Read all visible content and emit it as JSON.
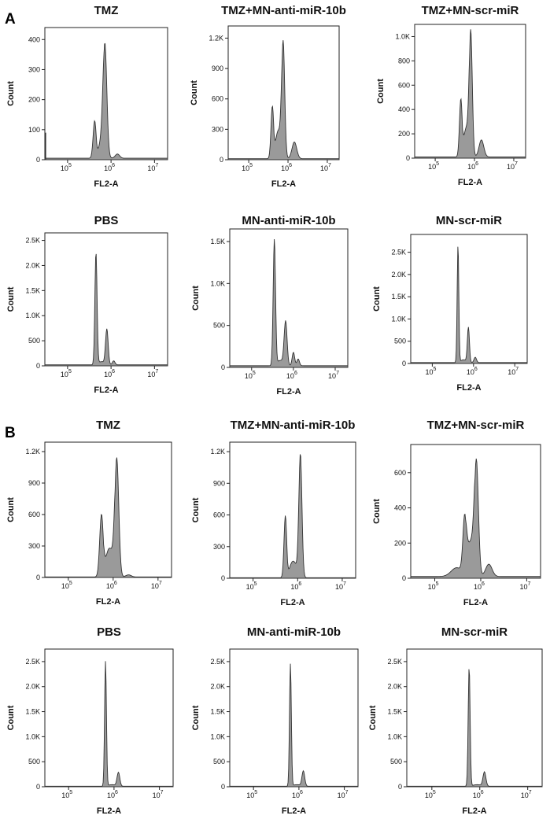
{
  "figure": {
    "panel_labels": [
      "A",
      "B"
    ]
  },
  "chart_data": [
    {
      "type": "histogram",
      "panel": "A",
      "title": "TMZ",
      "xlabel": "FL2-A",
      "ylabel": "Count",
      "xscale": "log",
      "xlim": [
        30000,
        20000000
      ],
      "xticks": [
        {
          "value": 100000,
          "base": "10",
          "exp": "5"
        },
        {
          "value": 1000000,
          "base": "10",
          "exp": "6"
        },
        {
          "value": 10000000,
          "base": "10",
          "exp": "7"
        }
      ],
      "ylim": [
        0,
        440
      ],
      "yticks": [
        {
          "value": 0,
          "label": "0"
        },
        {
          "value": 100,
          "label": "100"
        },
        {
          "value": 200,
          "label": "200"
        },
        {
          "value": 300,
          "label": "300"
        },
        {
          "value": 400,
          "label": "400"
        }
      ],
      "baseline": 5,
      "peaks": [
        {
          "center": 420000,
          "height": 125,
          "width": 0.035
        },
        {
          "center": 720000,
          "height": 385,
          "width": 0.045
        },
        {
          "center": 1400000,
          "height": 14,
          "width": 0.05
        }
      ],
      "s_phase": {
        "from": 480000,
        "to": 680000,
        "level": 42
      },
      "edge_spike": {
        "height": 90
      }
    },
    {
      "type": "histogram",
      "panel": "A",
      "title": "TMZ+MN-anti-miR-10b",
      "xlabel": "FL2-A",
      "ylabel": "Count",
      "xscale": "log",
      "xlim": [
        30000,
        20000000
      ],
      "xticks": [
        {
          "value": 100000,
          "base": "10",
          "exp": "5"
        },
        {
          "value": 1000000,
          "base": "10",
          "exp": "6"
        },
        {
          "value": 10000000,
          "base": "10",
          "exp": "7"
        }
      ],
      "ylim": [
        0,
        1320
      ],
      "yticks": [
        {
          "value": 0,
          "label": "0"
        },
        {
          "value": 300,
          "label": "300"
        },
        {
          "value": 600,
          "label": "600"
        },
        {
          "value": 900,
          "label": "900"
        },
        {
          "value": 1200,
          "label": "1.2K"
        }
      ],
      "baseline": 10,
      "peaks": [
        {
          "center": 400000,
          "height": 520,
          "width": 0.035
        },
        {
          "center": 750000,
          "height": 1170,
          "width": 0.04
        },
        {
          "center": 1450000,
          "height": 165,
          "width": 0.06
        }
      ],
      "s_phase": {
        "from": 450000,
        "to": 700000,
        "level": 260
      }
    },
    {
      "type": "histogram",
      "panel": "A",
      "title": "TMZ+MN-scr-miR",
      "xlabel": "FL2-A",
      "ylabel": "Count",
      "xscale": "log",
      "xlim": [
        30000,
        20000000
      ],
      "xticks": [
        {
          "value": 100000,
          "base": "10",
          "exp": "5"
        },
        {
          "value": 1000000,
          "base": "10",
          "exp": "6"
        },
        {
          "value": 10000000,
          "base": "10",
          "exp": "7"
        }
      ],
      "ylim": [
        0,
        1100
      ],
      "yticks": [
        {
          "value": 0,
          "label": "0"
        },
        {
          "value": 200,
          "label": "200"
        },
        {
          "value": 400,
          "label": "400"
        },
        {
          "value": 600,
          "label": "600"
        },
        {
          "value": 800,
          "label": "800"
        },
        {
          "value": 1000,
          "label": "1.0K"
        }
      ],
      "baseline": 10,
      "peaks": [
        {
          "center": 450000,
          "height": 480,
          "width": 0.035
        },
        {
          "center": 800000,
          "height": 1050,
          "width": 0.04
        },
        {
          "center": 1500000,
          "height": 140,
          "width": 0.06
        }
      ],
      "s_phase": {
        "from": 500000,
        "to": 750000,
        "level": 220
      }
    },
    {
      "type": "histogram",
      "panel": "A",
      "title": "PBS",
      "xlabel": "FL2-A",
      "ylabel": "Count",
      "xscale": "log",
      "xlim": [
        30000,
        20000000
      ],
      "xticks": [
        {
          "value": 100000,
          "base": "10",
          "exp": "5"
        },
        {
          "value": 1000000,
          "base": "10",
          "exp": "6"
        },
        {
          "value": 10000000,
          "base": "10",
          "exp": "7"
        }
      ],
      "ylim": [
        0,
        2650
      ],
      "yticks": [
        {
          "value": 0,
          "label": "0"
        },
        {
          "value": 500,
          "label": "500"
        },
        {
          "value": 1000,
          "label": "1.0K"
        },
        {
          "value": 1500,
          "label": "1.5K"
        },
        {
          "value": 2000,
          "label": "2.0K"
        },
        {
          "value": 2500,
          "label": "2.5K"
        }
      ],
      "baseline": 20,
      "peaks": [
        {
          "center": 450000,
          "height": 2250,
          "width": 0.025
        },
        {
          "center": 800000,
          "height": 720,
          "width": 0.03
        },
        {
          "center": 1150000,
          "height": 80,
          "width": 0.03
        }
      ],
      "s_phase": {
        "from": 480000,
        "to": 760000,
        "level": 60
      }
    },
    {
      "type": "histogram",
      "panel": "A",
      "title": "MN-anti-miR-10b",
      "xlabel": "FL2-A",
      "ylabel": "Count",
      "xscale": "log",
      "xlim": [
        30000,
        20000000
      ],
      "xticks": [
        {
          "value": 100000,
          "base": "10",
          "exp": "5"
        },
        {
          "value": 1000000,
          "base": "10",
          "exp": "6"
        },
        {
          "value": 10000000,
          "base": "10",
          "exp": "7"
        }
      ],
      "ylim": [
        0,
        1650
      ],
      "yticks": [
        {
          "value": 0,
          "label": "0"
        },
        {
          "value": 500,
          "label": "500"
        },
        {
          "value": 1000,
          "label": "1.0K"
        },
        {
          "value": 1500,
          "label": "1.5K"
        }
      ],
      "baseline": 20,
      "peaks": [
        {
          "center": 350000,
          "height": 1510,
          "width": 0.028
        },
        {
          "center": 650000,
          "height": 540,
          "width": 0.035
        },
        {
          "center": 1000000,
          "height": 160,
          "width": 0.03
        },
        {
          "center": 1300000,
          "height": 80,
          "width": 0.03
        }
      ],
      "s_phase": {
        "from": 380000,
        "to": 620000,
        "level": 60
      }
    },
    {
      "type": "histogram",
      "panel": "A",
      "title": "MN-scr-miR",
      "xlabel": "FL2-A",
      "ylabel": "Count",
      "xscale": "log",
      "xlim": [
        30000,
        20000000
      ],
      "xticks": [
        {
          "value": 100000,
          "base": "10",
          "exp": "5"
        },
        {
          "value": 1000000,
          "base": "10",
          "exp": "6"
        },
        {
          "value": 10000000,
          "base": "10",
          "exp": "7"
        }
      ],
      "ylim": [
        0,
        2900
      ],
      "yticks": [
        {
          "value": 0,
          "label": "0"
        },
        {
          "value": 500,
          "label": "500"
        },
        {
          "value": 1000,
          "label": "1.0K"
        },
        {
          "value": 1500,
          "label": "1.5K"
        },
        {
          "value": 2000,
          "label": "2.0K"
        },
        {
          "value": 2500,
          "label": "2.5K"
        }
      ],
      "baseline": 20,
      "peaks": [
        {
          "center": 420000,
          "height": 2650,
          "width": 0.02
        },
        {
          "center": 750000,
          "height": 800,
          "width": 0.025
        },
        {
          "center": 1100000,
          "height": 120,
          "width": 0.03
        }
      ],
      "s_phase": {
        "from": 450000,
        "to": 720000,
        "level": 60
      }
    },
    {
      "type": "histogram",
      "panel": "B",
      "title": "TMZ",
      "xlabel": "FL2-A",
      "ylabel": "Count",
      "xscale": "log",
      "xlim": [
        30000,
        20000000
      ],
      "xticks": [
        {
          "value": 100000,
          "base": "10",
          "exp": "5"
        },
        {
          "value": 1000000,
          "base": "10",
          "exp": "6"
        },
        {
          "value": 10000000,
          "base": "10",
          "exp": "7"
        }
      ],
      "ylim": [
        0,
        1290
      ],
      "yticks": [
        {
          "value": 0,
          "label": "0"
        },
        {
          "value": 300,
          "label": "300"
        },
        {
          "value": 600,
          "label": "600"
        },
        {
          "value": 900,
          "label": "900"
        },
        {
          "value": 1200,
          "label": "1.2K"
        }
      ],
      "baseline": 5,
      "peaks": [
        {
          "center": 550000,
          "height": 600,
          "width": 0.04
        },
        {
          "center": 1200000,
          "height": 1140,
          "width": 0.045
        },
        {
          "center": 2200000,
          "height": 20,
          "width": 0.06
        }
      ],
      "s_phase": {
        "from": 620000,
        "to": 1100000,
        "level": 260
      }
    },
    {
      "type": "histogram",
      "panel": "B",
      "title": "TMZ+MN-anti-miR-10b",
      "xlabel": "FL2-A",
      "ylabel": "Count",
      "xscale": "log",
      "xlim": [
        30000,
        20000000
      ],
      "xticks": [
        {
          "value": 100000,
          "base": "10",
          "exp": "5"
        },
        {
          "value": 1000000,
          "base": "10",
          "exp": "6"
        },
        {
          "value": 10000000,
          "base": "10",
          "exp": "7"
        }
      ],
      "ylim": [
        0,
        1290
      ],
      "yticks": [
        {
          "value": 0,
          "label": "0"
        },
        {
          "value": 300,
          "label": "300"
        },
        {
          "value": 600,
          "label": "600"
        },
        {
          "value": 900,
          "label": "900"
        },
        {
          "value": 1200,
          "label": "1.2K"
        }
      ],
      "baseline": 5,
      "peaks": [
        {
          "center": 530000,
          "height": 590,
          "width": 0.03
        },
        {
          "center": 1150000,
          "height": 1180,
          "width": 0.035
        }
      ],
      "s_phase": {
        "from": 600000,
        "to": 1050000,
        "level": 150
      }
    },
    {
      "type": "histogram",
      "panel": "B",
      "title": "TMZ+MN-scr-miR",
      "xlabel": "FL2-A",
      "ylabel": "Count",
      "xscale": "log",
      "xlim": [
        30000,
        20000000
      ],
      "xticks": [
        {
          "value": 100000,
          "base": "10",
          "exp": "5"
        },
        {
          "value": 1000000,
          "base": "10",
          "exp": "6"
        },
        {
          "value": 10000000,
          "base": "10",
          "exp": "7"
        }
      ],
      "ylim": [
        0,
        760
      ],
      "yticks": [
        {
          "value": 0,
          "label": "0"
        },
        {
          "value": 200,
          "label": "200"
        },
        {
          "value": 400,
          "label": "400"
        },
        {
          "value": 600,
          "label": "600"
        }
      ],
      "baseline": 10,
      "peaks": [
        {
          "center": 450000,
          "height": 340,
          "width": 0.04
        },
        {
          "center": 800000,
          "height": 670,
          "width": 0.045
        },
        {
          "center": 1500000,
          "height": 70,
          "width": 0.07
        }
      ],
      "s_phase": {
        "from": 480000,
        "to": 750000,
        "level": 180
      },
      "shoulder": {
        "center": 300000,
        "height": 50,
        "width": 0.12
      }
    },
    {
      "type": "histogram",
      "panel": "B",
      "title": "PBS",
      "xlabel": "FL2-A",
      "ylabel": "Count",
      "xscale": "log",
      "xlim": [
        30000,
        20000000
      ],
      "xticks": [
        {
          "value": 100000,
          "base": "10",
          "exp": "5"
        },
        {
          "value": 1000000,
          "base": "10",
          "exp": "6"
        },
        {
          "value": 10000000,
          "base": "10",
          "exp": "7"
        }
      ],
      "ylim": [
        0,
        2750
      ],
      "yticks": [
        {
          "value": 0,
          "label": "0"
        },
        {
          "value": 500,
          "label": "500"
        },
        {
          "value": 1000,
          "label": "1.0K"
        },
        {
          "value": 1500,
          "label": "1.5K"
        },
        {
          "value": 2000,
          "label": "2.0K"
        },
        {
          "value": 2500,
          "label": "2.5K"
        }
      ],
      "baseline": 10,
      "peaks": [
        {
          "center": 650000,
          "height": 2500,
          "width": 0.02
        },
        {
          "center": 1250000,
          "height": 280,
          "width": 0.03
        }
      ],
      "s_phase": {
        "from": 680000,
        "to": 1200000,
        "level": 30
      }
    },
    {
      "type": "histogram",
      "panel": "B",
      "title": "MN-anti-miR-10b",
      "xlabel": "FL2-A",
      "ylabel": "Count",
      "xscale": "log",
      "xlim": [
        30000,
        20000000
      ],
      "xticks": [
        {
          "value": 100000,
          "base": "10",
          "exp": "5"
        },
        {
          "value": 1000000,
          "base": "10",
          "exp": "6"
        },
        {
          "value": 10000000,
          "base": "10",
          "exp": "7"
        }
      ],
      "ylim": [
        0,
        2750
      ],
      "yticks": [
        {
          "value": 0,
          "label": "0"
        },
        {
          "value": 500,
          "label": "500"
        },
        {
          "value": 1000,
          "label": "1.0K"
        },
        {
          "value": 1500,
          "label": "1.5K"
        },
        {
          "value": 2000,
          "label": "2.0K"
        },
        {
          "value": 2500,
          "label": "2.5K"
        }
      ],
      "baseline": 10,
      "peaks": [
        {
          "center": 650000,
          "height": 2450,
          "width": 0.02
        },
        {
          "center": 1250000,
          "height": 310,
          "width": 0.03
        }
      ],
      "s_phase": {
        "from": 680000,
        "to": 1200000,
        "level": 30
      }
    },
    {
      "type": "histogram",
      "panel": "B",
      "title": "MN-scr-miR",
      "xlabel": "FL2-A",
      "ylabel": "Count",
      "xscale": "log",
      "xlim": [
        30000,
        20000000
      ],
      "xticks": [
        {
          "value": 100000,
          "base": "10",
          "exp": "5"
        },
        {
          "value": 1000000,
          "base": "10",
          "exp": "6"
        },
        {
          "value": 10000000,
          "base": "10",
          "exp": "7"
        }
      ],
      "ylim": [
        0,
        2750
      ],
      "yticks": [
        {
          "value": 0,
          "label": "0"
        },
        {
          "value": 500,
          "label": "500"
        },
        {
          "value": 1000,
          "label": "1.0K"
        },
        {
          "value": 1500,
          "label": "1.5K"
        },
        {
          "value": 2000,
          "label": "2.0K"
        },
        {
          "value": 2500,
          "label": "2.5K"
        }
      ],
      "baseline": 10,
      "peaks": [
        {
          "center": 600000,
          "height": 2400,
          "width": 0.02
        },
        {
          "center": 1250000,
          "height": 290,
          "width": 0.03
        }
      ],
      "s_phase": {
        "from": 650000,
        "to": 1200000,
        "level": 30
      }
    }
  ]
}
